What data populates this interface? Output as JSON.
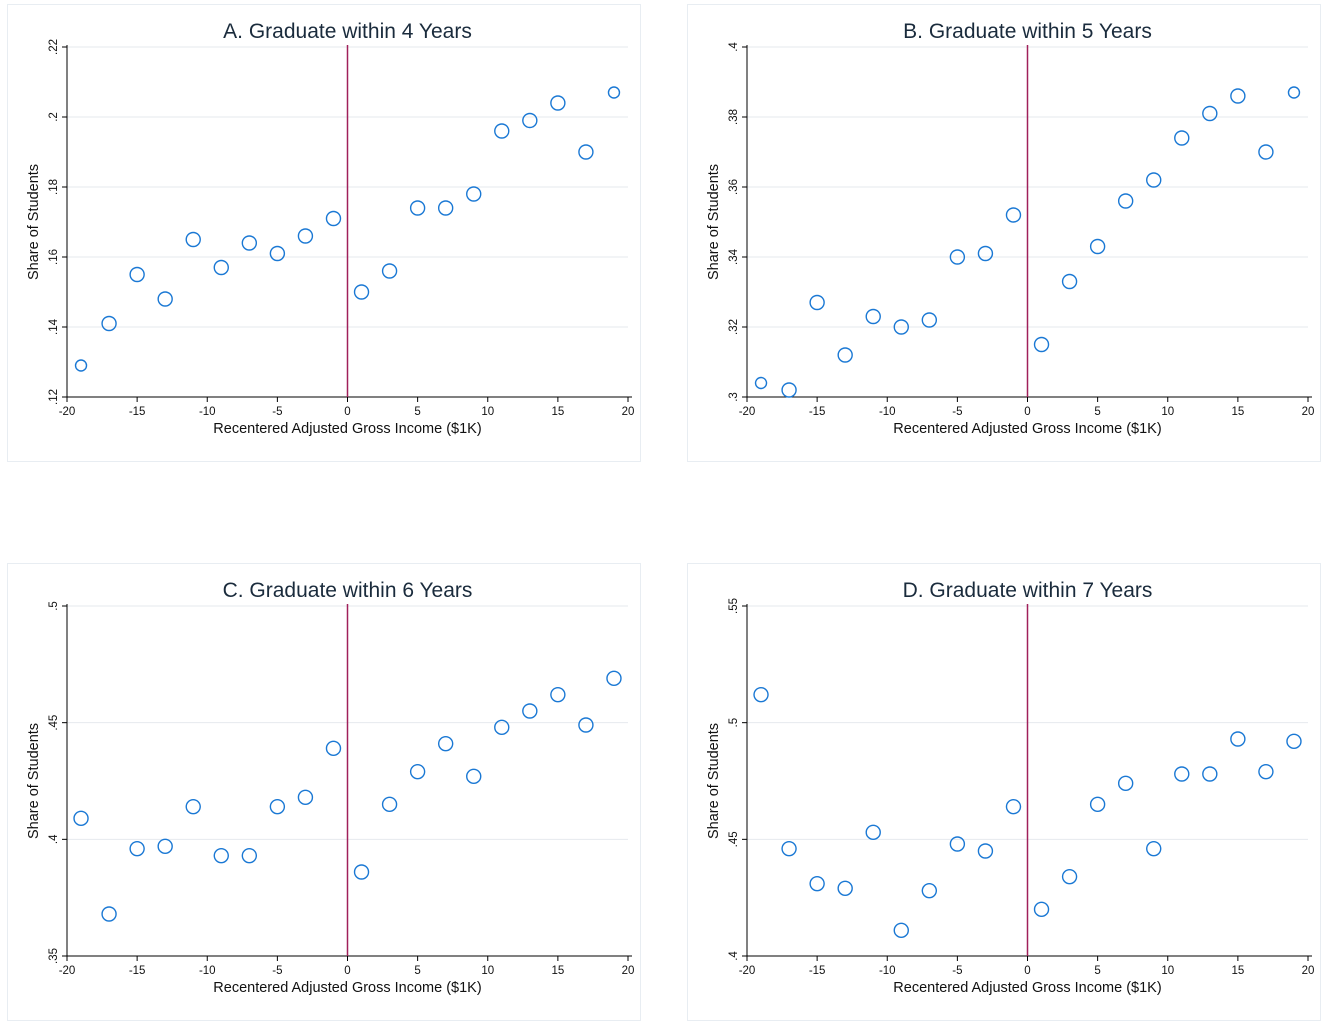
{
  "chart_data": [
    {
      "type": "scatter",
      "title": "A. Graduate within 4 Years",
      "xlabel": "Recentered Adjusted Gross Income ($1K)",
      "ylabel": "Share of Students",
      "xlim": [
        -20,
        20
      ],
      "ylim": [
        0.12,
        0.22
      ],
      "xticks": [
        -20,
        -15,
        -10,
        -5,
        0,
        5,
        10,
        15,
        20
      ],
      "xtick_labels": [
        "-20",
        "-15",
        "-10",
        "-5",
        "0",
        "5",
        "10",
        "15",
        "20"
      ],
      "yticks": [
        0.12,
        0.14,
        0.16,
        0.18,
        0.2,
        0.22
      ],
      "ytick_labels": [
        ".12",
        ".14",
        ".16",
        ".18",
        ".2",
        ".22"
      ],
      "cutoff": 0,
      "grid": true,
      "x": [
        -19,
        -17,
        -15,
        -13,
        -11,
        -9,
        -7,
        -5,
        -3,
        -1,
        1,
        3,
        5,
        7,
        9,
        11,
        13,
        15,
        17,
        19
      ],
      "y": [
        0.129,
        0.141,
        0.155,
        0.148,
        0.165,
        0.157,
        0.164,
        0.161,
        0.166,
        0.171,
        0.15,
        0.156,
        0.174,
        0.174,
        0.178,
        0.196,
        0.199,
        0.204,
        0.19,
        0.207
      ]
    },
    {
      "type": "scatter",
      "title": "B. Graduate within 5 Years",
      "xlabel": "Recentered Adjusted Gross Income ($1K)",
      "ylabel": "Share of Students",
      "xlim": [
        -20,
        20
      ],
      "ylim": [
        0.3,
        0.4
      ],
      "xticks": [
        -20,
        -15,
        -10,
        -5,
        0,
        5,
        10,
        15,
        20
      ],
      "xtick_labels": [
        "-20",
        "-15",
        "-10",
        "-5",
        "0",
        "5",
        "10",
        "15",
        "20"
      ],
      "yticks": [
        0.3,
        0.32,
        0.34,
        0.36,
        0.38,
        0.4
      ],
      "ytick_labels": [
        ".3",
        ".32",
        ".34",
        ".36",
        ".38",
        ".4"
      ],
      "cutoff": 0,
      "grid": true,
      "x": [
        -19,
        -17,
        -15,
        -13,
        -11,
        -9,
        -7,
        -5,
        -3,
        -1,
        1,
        3,
        5,
        7,
        9,
        11,
        13,
        15,
        17,
        19
      ],
      "y": [
        0.304,
        0.302,
        0.327,
        0.312,
        0.323,
        0.32,
        0.322,
        0.34,
        0.341,
        0.352,
        0.315,
        0.333,
        0.343,
        0.356,
        0.362,
        0.374,
        0.381,
        0.386,
        0.37,
        0.387
      ]
    },
    {
      "type": "scatter",
      "title": "C. Graduate within 6 Years",
      "xlabel": "Recentered Adjusted Gross Income ($1K)",
      "ylabel": "Share of Students",
      "xlim": [
        -20,
        20
      ],
      "ylim": [
        0.35,
        0.5
      ],
      "xticks": [
        -20,
        -15,
        -10,
        -5,
        0,
        5,
        10,
        15,
        20
      ],
      "xtick_labels": [
        "-20",
        "-15",
        "-10",
        "-5",
        "0",
        "5",
        "10",
        "15",
        "20"
      ],
      "yticks": [
        0.35,
        0.4,
        0.45,
        0.5
      ],
      "ytick_labels": [
        ".35",
        ".4",
        ".45",
        ".5"
      ],
      "cutoff": 0,
      "grid": true,
      "x": [
        -19,
        -17,
        -15,
        -13,
        -11,
        -9,
        -7,
        -5,
        -3,
        -1,
        1,
        3,
        5,
        7,
        9,
        11,
        13,
        15,
        17,
        19
      ],
      "y": [
        0.409,
        0.368,
        0.396,
        0.397,
        0.414,
        0.393,
        0.393,
        0.414,
        0.418,
        0.439,
        0.386,
        0.415,
        0.429,
        0.441,
        0.427,
        0.448,
        0.455,
        0.462,
        0.449,
        0.469
      ]
    },
    {
      "type": "scatter",
      "title": "D. Graduate within 7 Years",
      "xlabel": "Recentered Adjusted Gross Income ($1K)",
      "ylabel": "Share of Students",
      "xlim": [
        -20,
        20
      ],
      "ylim": [
        0.4,
        0.55
      ],
      "xticks": [
        -20,
        -15,
        -10,
        -5,
        0,
        5,
        10,
        15,
        20
      ],
      "xtick_labels": [
        "-20",
        "-15",
        "-10",
        "-5",
        "0",
        "5",
        "10",
        "15",
        "20"
      ],
      "yticks": [
        0.4,
        0.45,
        0.5,
        0.55
      ],
      "ytick_labels": [
        ".4",
        ".45",
        ".5",
        ".55"
      ],
      "cutoff": 0,
      "grid": true,
      "x": [
        -19,
        -17,
        -15,
        -13,
        -11,
        -9,
        -7,
        -5,
        -3,
        -1,
        1,
        3,
        5,
        7,
        9,
        11,
        13,
        15,
        17,
        19
      ],
      "y": [
        0.512,
        0.446,
        0.431,
        0.429,
        0.453,
        0.411,
        0.428,
        0.448,
        0.445,
        0.464,
        0.42,
        0.434,
        0.465,
        0.474,
        0.446,
        0.478,
        0.478,
        0.493,
        0.479,
        0.492
      ]
    }
  ],
  "colors": {
    "marker": "#1a78d4",
    "cutoff_line": "#a0205a",
    "grid": "#e6eaee",
    "title": "#1a2b3c"
  }
}
